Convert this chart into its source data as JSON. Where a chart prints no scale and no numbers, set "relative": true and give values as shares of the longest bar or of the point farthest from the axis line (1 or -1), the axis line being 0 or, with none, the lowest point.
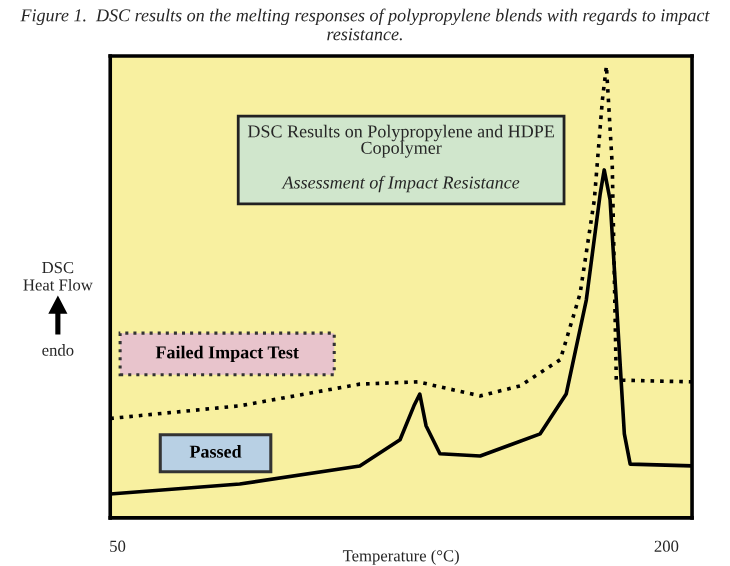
{
  "chart_data": {
    "type": "line",
    "title": "Figure 1.  DSC results on the melting responses of polypropylene blends with regards to impact resistance.",
    "xlabel": "Temperature (°C)",
    "ylabel": "DSC\nHeat Flow",
    "relative": true,
    "xlim": [
      48,
      207
    ],
    "xticks": [
      50,
      200
    ],
    "tick_labels": "x",
    "grid": false,
    "legend": false,
    "marker": "none",
    "annotations": [
      "DSC Results on Polypropylene and HDPE\nCopolymer",
      "Assessment of Impact Resistance",
      "endo"
    ],
    "series": [
      {
        "name": "Failed Impact Test",
        "color": "#000000",
        "line_style": "dotted",
        "x": [
          48,
          83.4,
          116.2,
          132.1,
          149.1,
          160,
          171,
          176.4,
          180.3,
          182.5,
          183.6,
          185.2,
          186.3,
          207
        ],
        "values": [
          0.22,
          0.248,
          0.296,
          0.301,
          0.27,
          0.292,
          0.35,
          0.496,
          0.704,
          0.925,
          1,
          0.779,
          0.305,
          0.301
        ]
      },
      {
        "name": "Passed",
        "color": "#000000",
        "line_style": "solid",
        "x": [
          48,
          83.4,
          116.2,
          127.2,
          131,
          132.6,
          134.3,
          138.1,
          149.1,
          165.5,
          172.6,
          178.1,
          181.9,
          183,
          184.6,
          186.3,
          188.5,
          190.1,
          207
        ],
        "values": [
          0.053,
          0.075,
          0.115,
          0.173,
          0.248,
          0.274,
          0.204,
          0.142,
          0.137,
          0.186,
          0.274,
          0.482,
          0.717,
          0.77,
          0.704,
          0.482,
          0.186,
          0.119,
          0.115
        ]
      }
    ]
  }
}
